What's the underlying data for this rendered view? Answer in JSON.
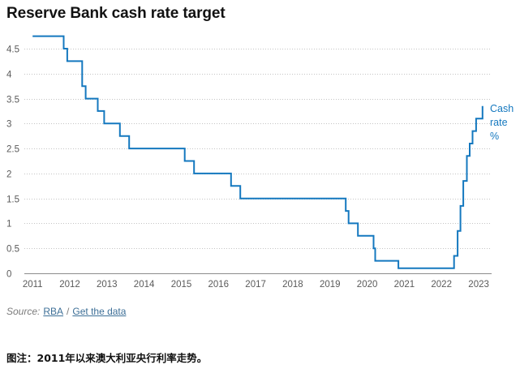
{
  "chart_data": {
    "type": "line",
    "line_style": "step",
    "title": "Reserve Bank cash rate target",
    "xlabel": "",
    "ylabel": "",
    "xlim": [
      "2010-10-12",
      "2023-05-08"
    ],
    "ylim": [
      0,
      4.5
    ],
    "x_ticks": [
      "2011",
      "2012",
      "2013",
      "2014",
      "2015",
      "2016",
      "2017",
      "2018",
      "2019",
      "2020",
      "2021",
      "2022",
      "2023"
    ],
    "y_ticks": [
      "0",
      "0.5",
      "1",
      "1.5",
      "2",
      "2.5",
      "3",
      "3.5",
      "4",
      "4.5"
    ],
    "grid": {
      "horizontal": true,
      "vertical": false
    },
    "legend": "right, label at end of line",
    "colors": {
      "grid": "#c4c4c4",
      "baseline": "#8c8c8c"
    },
    "series": [
      {
        "name": "Cash rate %",
        "color": "#1478bf",
        "points": [
          {
            "date": "2011-01-01",
            "value": 4.75
          },
          {
            "date": "2011-11-02",
            "value": 4.5
          },
          {
            "date": "2011-12-07",
            "value": 4.25
          },
          {
            "date": "2012-05-02",
            "value": 3.75
          },
          {
            "date": "2012-06-06",
            "value": 3.5
          },
          {
            "date": "2012-10-03",
            "value": 3.25
          },
          {
            "date": "2012-12-05",
            "value": 3.0
          },
          {
            "date": "2013-05-08",
            "value": 2.75
          },
          {
            "date": "2013-08-07",
            "value": 2.5
          },
          {
            "date": "2015-02-04",
            "value": 2.25
          },
          {
            "date": "2015-05-06",
            "value": 2.0
          },
          {
            "date": "2016-05-04",
            "value": 1.75
          },
          {
            "date": "2016-08-03",
            "value": 1.5
          },
          {
            "date": "2019-06-05",
            "value": 1.25
          },
          {
            "date": "2019-07-03",
            "value": 1.0
          },
          {
            "date": "2019-10-02",
            "value": 0.75
          },
          {
            "date": "2020-03-04",
            "value": 0.5
          },
          {
            "date": "2020-03-20",
            "value": 0.25
          },
          {
            "date": "2020-11-04",
            "value": 0.1
          },
          {
            "date": "2022-05-04",
            "value": 0.35
          },
          {
            "date": "2022-06-08",
            "value": 0.85
          },
          {
            "date": "2022-07-06",
            "value": 1.35
          },
          {
            "date": "2022-08-03",
            "value": 1.85
          },
          {
            "date": "2022-09-07",
            "value": 2.35
          },
          {
            "date": "2022-10-05",
            "value": 2.6
          },
          {
            "date": "2022-11-02",
            "value": 2.85
          },
          {
            "date": "2022-12-07",
            "value": 3.1
          },
          {
            "date": "2023-02-08",
            "value": 3.35
          }
        ]
      }
    ]
  },
  "source": {
    "label": "Source:",
    "links": [
      "RBA",
      "Get the data"
    ],
    "separator": "/"
  },
  "caption": "图注：2011年以来澳大利亚央行利率走势。"
}
